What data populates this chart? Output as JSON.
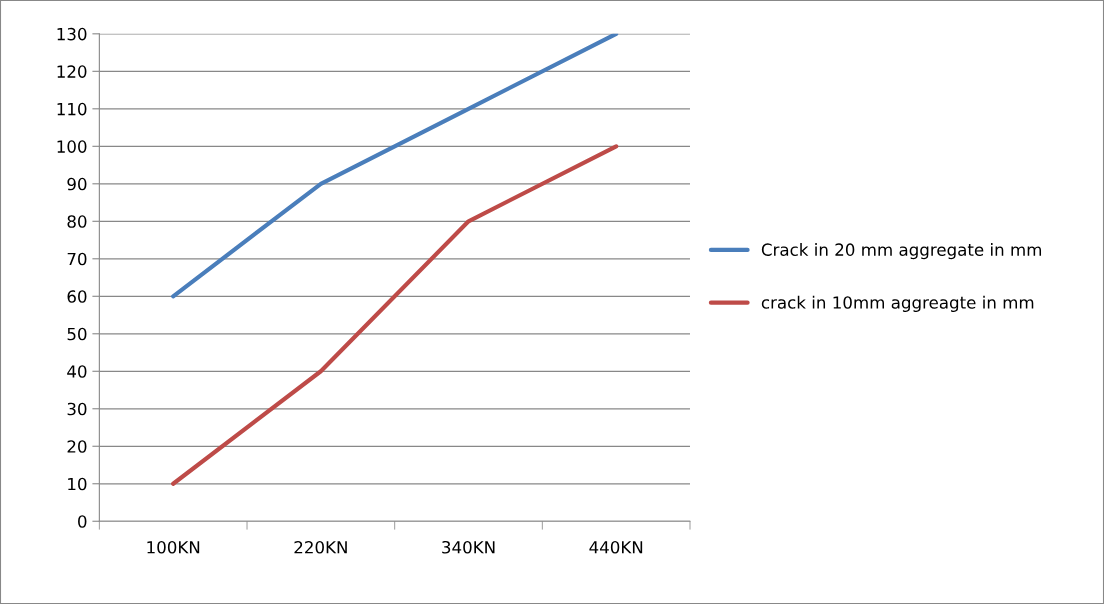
{
  "chart_data": {
    "type": "line",
    "categories": [
      "100KN",
      "220KN",
      "340KN",
      "440KN"
    ],
    "series": [
      {
        "name": "Crack in 20 mm aggregate in mm",
        "color": "#4a7ebb",
        "values": [
          60,
          90,
          110,
          130
        ]
      },
      {
        "name": "crack in 10mm aggreagte in mm",
        "color": "#be4b48",
        "values": [
          10,
          40,
          80,
          100
        ]
      }
    ],
    "ylim": [
      0,
      130
    ],
    "yticks": [
      0,
      10,
      20,
      30,
      40,
      50,
      60,
      70,
      80,
      90,
      100,
      110,
      120,
      130
    ],
    "grid": "y",
    "legend": "right",
    "marker": "none",
    "line_style": "solid"
  }
}
